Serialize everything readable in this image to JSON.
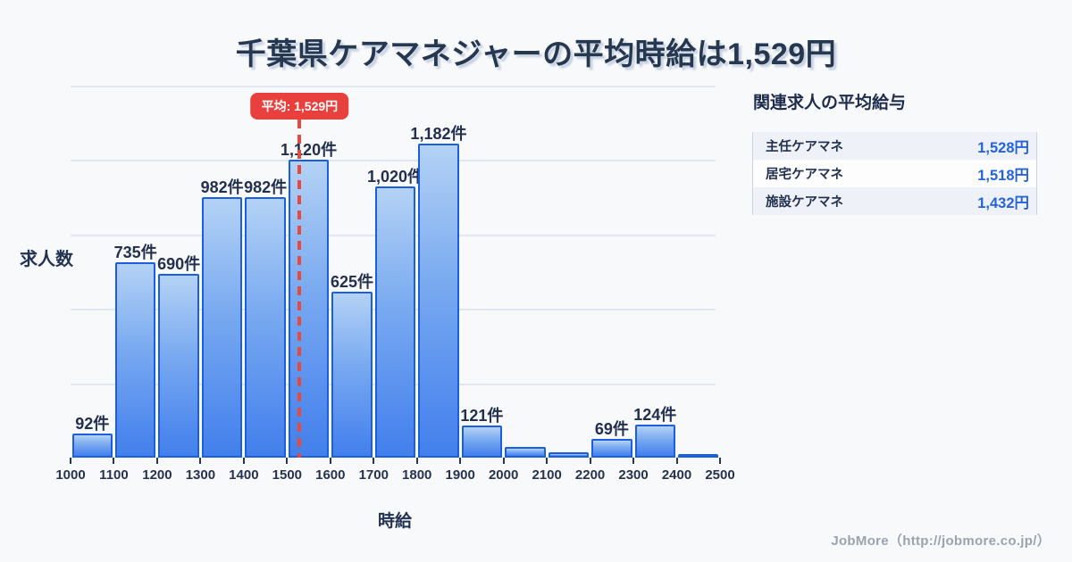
{
  "title": "千葉県ケアマネジャーの平均時給は1,529円",
  "chart_data": {
    "type": "bar",
    "title": "千葉県ケアマネジャーの平均時給は1,529円",
    "xlabel": "時給",
    "ylabel": "求人数",
    "bin_start": 1000,
    "bin_width": 100,
    "x_tick_labels": [
      "1000",
      "1100",
      "1200",
      "1300",
      "1400",
      "1500",
      "1600",
      "1700",
      "1800",
      "1900",
      "2000",
      "2100",
      "2200",
      "2300",
      "2400",
      "2500"
    ],
    "values": [
      92,
      735,
      690,
      982,
      982,
      1120,
      625,
      1020,
      1182,
      121,
      40,
      20,
      69,
      124,
      15
    ],
    "bar_labels": [
      "92件",
      "735件",
      "690件",
      "982件",
      "982件",
      "1,120件",
      "625件",
      "1,020件",
      "1,182件",
      "121件",
      "",
      "",
      "69件",
      "124件",
      ""
    ],
    "xlim": [
      1000,
      2500
    ],
    "ylim": [
      0,
      1400
    ],
    "grid": true,
    "legend": "none",
    "mean": {
      "value": 1529,
      "label": "平均: 1,529円"
    },
    "colors": {
      "bar_fill_top": "#b4d2f5",
      "bar_fill_bottom": "#4380ea",
      "bar_border": "#1b5ede",
      "mean_line": "#e7493f",
      "badge_background": "#e8413d",
      "badge_text": "#ffffff",
      "text_dark": "#223252",
      "gridline": "#e2e6f1",
      "background": "#f8f9fb"
    }
  },
  "side_panel": {
    "heading": "関連求人の平均給与",
    "value_color": "#2563d8",
    "rows": [
      {
        "label": "主任ケアマネ",
        "value": "1,528円"
      },
      {
        "label": "居宅ケアマネ",
        "value": "1,518円"
      },
      {
        "label": "施設ケアマネ",
        "value": "1,432円"
      }
    ]
  },
  "footer": {
    "credit": "JobMore（http://jobmore.co.jp/）"
  }
}
